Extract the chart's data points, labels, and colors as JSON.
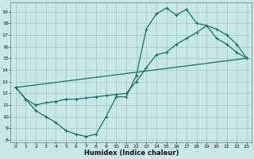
{
  "xlabel": "Humidex (Indice chaleur)",
  "bg_color": "#c8e8e5",
  "grid_color": "#a8ceca",
  "line_color": "#1a6e68",
  "xlim": [
    -0.5,
    23.5
  ],
  "ylim": [
    7.8,
    19.8
  ],
  "xticks": [
    0,
    1,
    2,
    3,
    4,
    5,
    6,
    7,
    8,
    9,
    10,
    11,
    12,
    13,
    14,
    15,
    16,
    17,
    18,
    19,
    20,
    21,
    22,
    23
  ],
  "yticks": [
    8,
    9,
    10,
    11,
    12,
    13,
    14,
    15,
    16,
    17,
    18,
    19
  ],
  "curve1_x": [
    0,
    1,
    2,
    3,
    4,
    5,
    6,
    7,
    8,
    9,
    10,
    11,
    12,
    13,
    14,
    15,
    16,
    17,
    18,
    19,
    20,
    21,
    22,
    23
  ],
  "curve1_y": [
    12.5,
    11.5,
    10.5,
    10.0,
    9.5,
    8.8,
    8.5,
    8.3,
    8.5,
    10.0,
    11.7,
    11.7,
    13.5,
    17.5,
    18.8,
    19.3,
    18.7,
    19.2,
    18.0,
    17.8,
    16.7,
    16.2,
    15.5,
    15.0
  ],
  "curve2_x": [
    0,
    1,
    2,
    3,
    4,
    5,
    6,
    7,
    8,
    9,
    10,
    11,
    12,
    13,
    14,
    15,
    16,
    17,
    18,
    19,
    20,
    21,
    22,
    23
  ],
  "curve2_y": [
    12.5,
    11.5,
    11.0,
    11.2,
    11.3,
    11.5,
    11.5,
    11.6,
    11.7,
    11.8,
    11.9,
    12.0,
    13.0,
    14.2,
    15.3,
    15.5,
    16.2,
    16.7,
    17.2,
    17.8,
    17.5,
    17.0,
    16.2,
    15.0
  ],
  "curve3_x": [
    0,
    23
  ],
  "curve3_y": [
    12.5,
    15.0
  ]
}
